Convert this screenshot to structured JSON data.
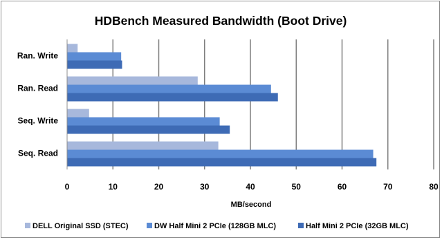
{
  "chart_data": {
    "type": "bar",
    "orientation": "horizontal",
    "title": "HDBench Measured Bandwidth (Boot Drive)",
    "xlabel": "MB/second",
    "ylabel": "",
    "categories": [
      "Ran. Write",
      "Ran. Read",
      "Seq. Write",
      "Seq. Read"
    ],
    "xlim": [
      0,
      80
    ],
    "xticks": [
      0,
      10,
      20,
      30,
      40,
      50,
      60,
      70,
      80
    ],
    "grid": "vertical",
    "legend_position": "bottom",
    "series": [
      {
        "name": "DELL Original SSD (STEC)",
        "color": "#a7b8dc",
        "values": [
          2.3,
          28.5,
          4.8,
          33.0
        ]
      },
      {
        "name": "DW Half Mini 2 PCIe (128GB MLC)",
        "color": "#5b8bd4",
        "values": [
          11.8,
          44.5,
          33.3,
          66.8
        ]
      },
      {
        "name": "Half Mini 2 PCIe (32GB MLC)",
        "color": "#3e6bb5",
        "values": [
          12.0,
          46.0,
          35.5,
          67.5
        ]
      }
    ]
  }
}
